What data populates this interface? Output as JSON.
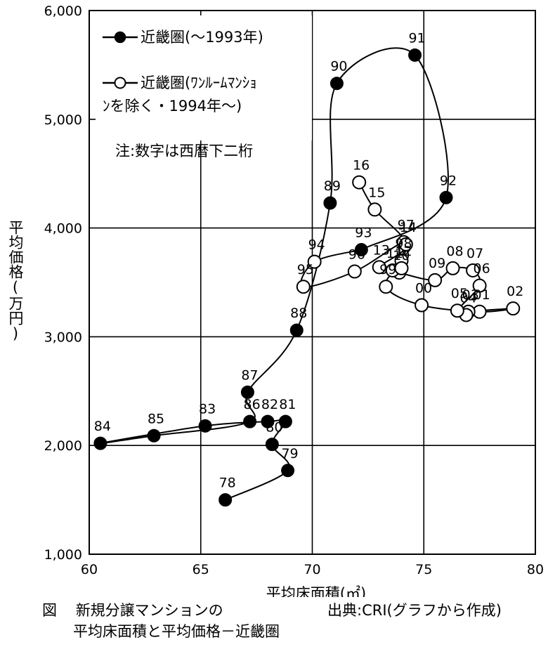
{
  "chart_data": {
    "type": "line",
    "title": "",
    "xlabel": "平均床面積(㎡)",
    "ylabel": "平均価格(万円)",
    "xlim": [
      60,
      80
    ],
    "ylim": [
      1000,
      6000
    ],
    "x_ticks": [
      "60",
      "65",
      "70",
      "75",
      "80"
    ],
    "y_ticks": [
      "1,000",
      "2,000",
      "3,000",
      "4,000",
      "5,000",
      "6,000"
    ],
    "grid": true,
    "legend_position": "top-left",
    "note": "注:数字は西暦下二桁",
    "series": [
      {
        "name": "近畿圏(～1993年)",
        "marker": "filled-circle",
        "points": [
          {
            "label": "78",
            "x": 66.1,
            "y": 1500
          },
          {
            "label": "79",
            "x": 68.9,
            "y": 1770
          },
          {
            "label": "80",
            "x": 68.2,
            "y": 2010
          },
          {
            "label": "81",
            "x": 68.8,
            "y": 2220
          },
          {
            "label": "82",
            "x": 68.0,
            "y": 2220
          },
          {
            "label": "83",
            "x": 65.2,
            "y": 2180
          },
          {
            "label": "84",
            "x": 60.5,
            "y": 2020
          },
          {
            "label": "85",
            "x": 62.9,
            "y": 2090
          },
          {
            "label": "86",
            "x": 67.2,
            "y": 2220
          },
          {
            "label": "87",
            "x": 67.1,
            "y": 2490
          },
          {
            "label": "88",
            "x": 69.3,
            "y": 3060
          },
          {
            "label": "89",
            "x": 70.8,
            "y": 4230
          },
          {
            "label": "90",
            "x": 71.1,
            "y": 5330
          },
          {
            "label": "91",
            "x": 74.6,
            "y": 5590
          },
          {
            "label": "92",
            "x": 76.0,
            "y": 4280
          },
          {
            "label": "93",
            "x": 72.2,
            "y": 3800
          }
        ]
      },
      {
        "name": "近畿圏(ﾜﾝﾙｰﾑﾏﾝｼｮﾝを除く・1994年～)",
        "name_line1": "近畿圏(ﾜﾝﾙｰﾑﾏﾝｼｮ",
        "name_line2": "ﾝを除く・1994年～)",
        "marker": "open-circle",
        "points": [
          {
            "label": "94",
            "x": 70.1,
            "y": 3690
          },
          {
            "label": "95",
            "x": 69.6,
            "y": 3460
          },
          {
            "label": "96",
            "x": 71.9,
            "y": 3600
          },
          {
            "label": "97",
            "x": 74.1,
            "y": 3870
          },
          {
            "label": "98",
            "x": 74.0,
            "y": 3700
          },
          {
            "label": "99",
            "x": 73.3,
            "y": 3460
          },
          {
            "label": "00",
            "x": 74.9,
            "y": 3290
          },
          {
            "label": "01",
            "x": 77.5,
            "y": 3230
          },
          {
            "label": "02",
            "x": 79.0,
            "y": 3260
          },
          {
            "label": "03",
            "x": 77.0,
            "y": 3230
          },
          {
            "label": "04",
            "x": 76.9,
            "y": 3200
          },
          {
            "label": "05",
            "x": 76.5,
            "y": 3240
          },
          {
            "label": "06",
            "x": 77.5,
            "y": 3470
          },
          {
            "label": "07",
            "x": 77.2,
            "y": 3610
          },
          {
            "label": "08",
            "x": 76.3,
            "y": 3630
          },
          {
            "label": "09",
            "x": 75.5,
            "y": 3520
          },
          {
            "label": "10",
            "x": 73.9,
            "y": 3590
          },
          {
            "label": "11",
            "x": 73.6,
            "y": 3610
          },
          {
            "label": "12",
            "x": 74.0,
            "y": 3630
          },
          {
            "label": "13",
            "x": 73.0,
            "y": 3640
          },
          {
            "label": "14",
            "x": 74.2,
            "y": 3850
          },
          {
            "label": "15",
            "x": 72.8,
            "y": 4170
          },
          {
            "label": "16",
            "x": 72.1,
            "y": 4420
          }
        ]
      }
    ]
  },
  "caption": {
    "prefix": "図",
    "line1": "新規分譲マンションの",
    "line2": "平均床面積と平均価格－近畿圏",
    "source": "出典:CRI(グラフから作成)"
  }
}
